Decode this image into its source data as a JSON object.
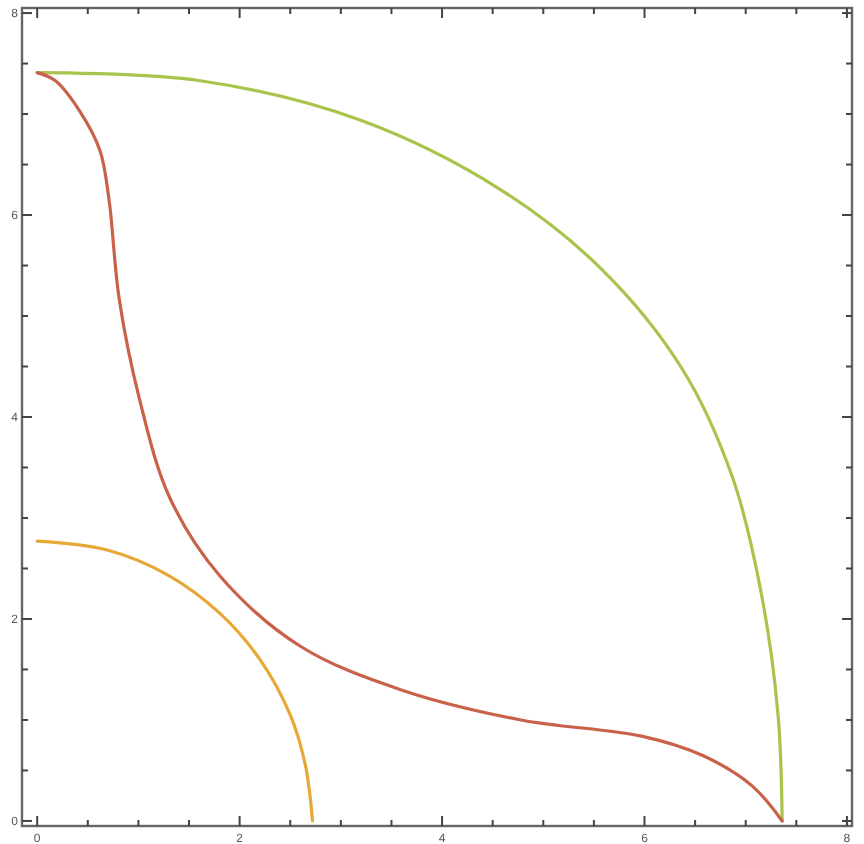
{
  "chart_data": {
    "type": "line",
    "xlim": [
      -0.15,
      8.05
    ],
    "ylim": [
      -0.05,
      8.05
    ],
    "xticks": [
      0,
      {
        "value": 0.5,
        "label": null
      },
      {
        "value": 1,
        "label": null
      },
      {
        "value": 1.5,
        "label": null
      },
      2,
      {
        "value": 2.5,
        "label": null
      },
      {
        "value": 3,
        "label": null
      },
      {
        "value": 3.5,
        "label": null
      },
      4,
      {
        "value": 4.5,
        "label": null
      },
      {
        "value": 5,
        "label": null
      },
      {
        "value": 5.5,
        "label": null
      },
      6,
      {
        "value": 6.5,
        "label": null
      },
      {
        "value": 7,
        "label": null
      },
      {
        "value": 7.5,
        "label": null
      },
      8
    ],
    "yticks": [
      0,
      {
        "value": 0.5,
        "label": null
      },
      {
        "value": 1,
        "label": null
      },
      {
        "value": 1.5,
        "label": null
      },
      2,
      {
        "value": 2.5,
        "label": null
      },
      {
        "value": 3,
        "label": null
      },
      {
        "value": 3.5,
        "label": null
      },
      4,
      {
        "value": 4.5,
        "label": null
      },
      {
        "value": 5,
        "label": null
      },
      {
        "value": 5.5,
        "label": null
      },
      6,
      {
        "value": 6.5,
        "label": null
      },
      {
        "value": 7,
        "label": null
      },
      {
        "value": 7.5,
        "label": null
      },
      8
    ],
    "grid": false,
    "marker": "none",
    "line_style": "solid",
    "series": [
      {
        "color": "#a8c44c",
        "x": [
          0,
          1.61,
          3.19,
          4.58,
          5.58,
          6.37,
          6.87,
          7.16,
          7.32,
          7.36
        ],
        "values": [
          7.41,
          7.33,
          6.94,
          6.25,
          5.46,
          4.48,
          3.4,
          2.22,
          1.04,
          0
        ]
      },
      {
        "color": "#c8624a",
        "x": [
          0,
          0.18,
          0.42,
          0.62,
          0.71,
          0.81,
          1.01,
          1.31,
          1.81,
          2.6,
          3.59,
          4.78,
          5.97,
          6.57,
          7.06,
          7.36
        ],
        "values": [
          7.41,
          7.33,
          7.03,
          6.64,
          6.15,
          5.17,
          4.18,
          3.2,
          2.42,
          1.73,
          1.3,
          1.0,
          0.84,
          0.65,
          0.35,
          0
        ]
      },
      {
        "color": "#e8a838",
        "x": [
          0,
          0.7,
          1.3,
          1.8,
          2.2,
          2.5,
          2.65,
          2.72
        ],
        "values": [
          2.77,
          2.68,
          2.43,
          2.06,
          1.6,
          1.05,
          0.55,
          0
        ]
      }
    ]
  }
}
